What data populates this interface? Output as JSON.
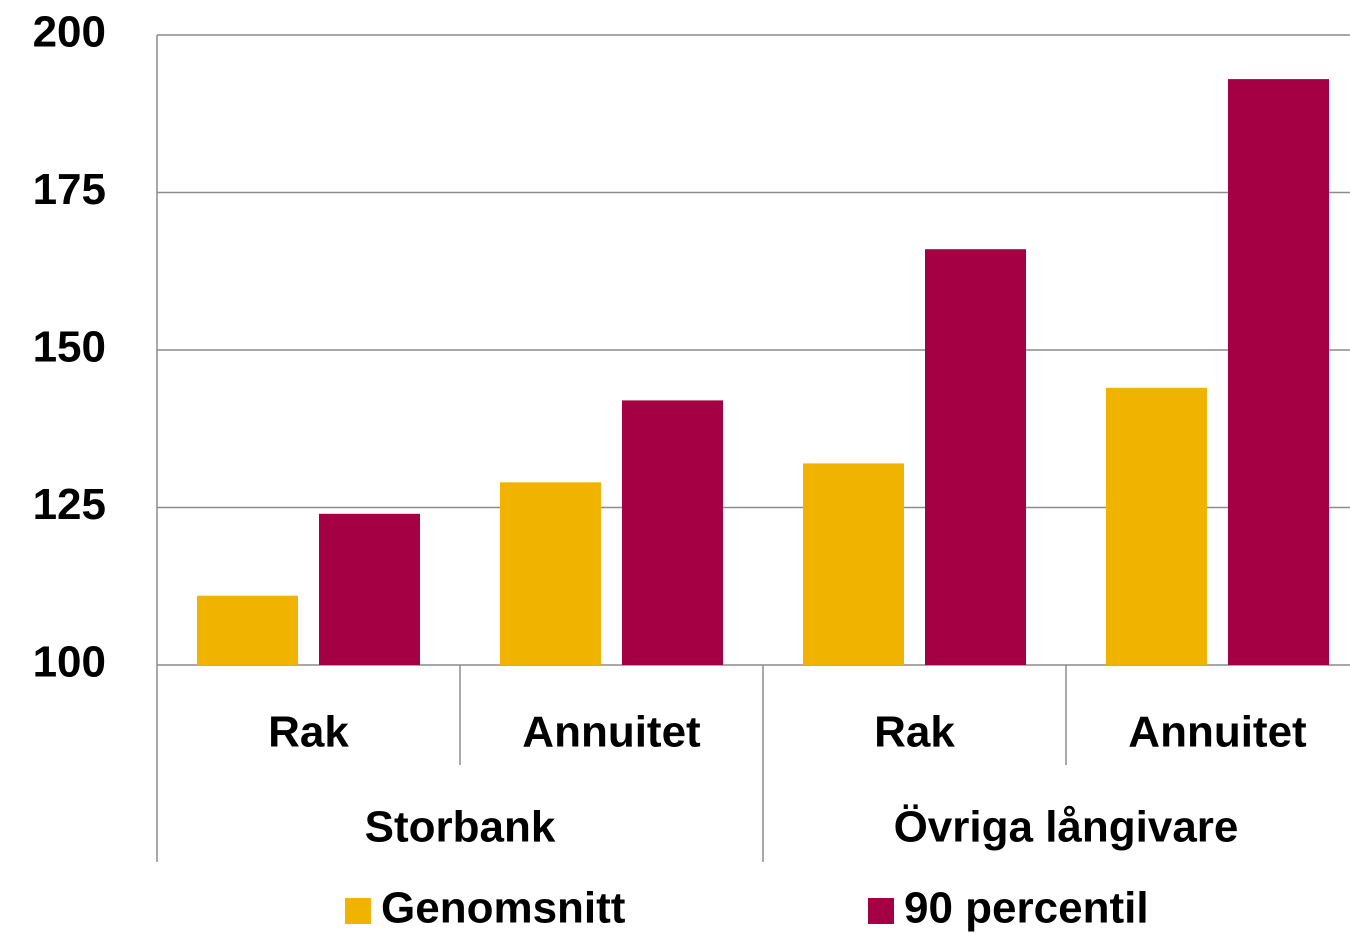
{
  "chart_data": {
    "type": "bar",
    "categories": [
      "Rak",
      "Annuitet",
      "Rak",
      "Annuitet"
    ],
    "groups": [
      "Storbank",
      "Övriga långivare"
    ],
    "series": [
      {
        "name": "Genomsnitt",
        "color": "#f0b400",
        "values": [
          111,
          129,
          132,
          144
        ]
      },
      {
        "name": "90 percentil",
        "color": "#a50044",
        "values": [
          124,
          142,
          166,
          193
        ]
      }
    ],
    "ylim": [
      100,
      200
    ],
    "yticks": [
      100,
      125,
      150,
      175,
      200
    ],
    "grid": true,
    "legend": "bottom"
  }
}
